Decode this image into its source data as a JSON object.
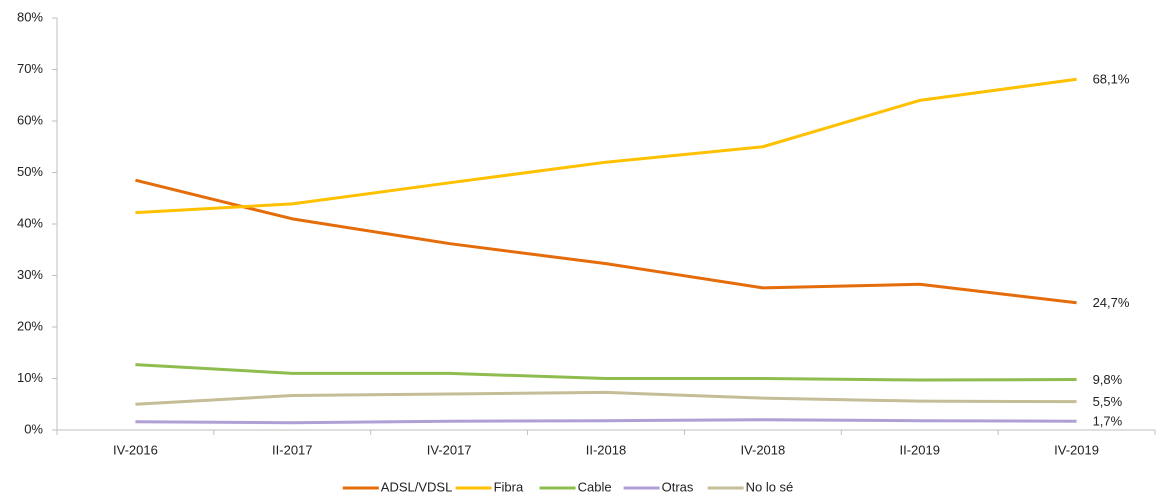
{
  "chart_data": {
    "type": "line",
    "categories": [
      "IV-2016",
      "II-2017",
      "IV-2017",
      "II-2018",
      "IV-2018",
      "II-2019",
      "IV-2019"
    ],
    "series": [
      {
        "name": "ADSL/VDSL",
        "color": "#e46c0a",
        "values": [
          48.5,
          41,
          36.2,
          32.3,
          27.6,
          28.3,
          24.7
        ],
        "value_labels": [
          null,
          null,
          null,
          null,
          null,
          null,
          "24,7%"
        ]
      },
      {
        "name": "Fibra",
        "color": "#ffc000",
        "values": [
          42.2,
          43.9,
          48,
          52,
          55,
          64,
          68.1
        ],
        "value_labels": [
          null,
          null,
          null,
          null,
          null,
          null,
          "68,1%"
        ]
      },
      {
        "name": "Cable",
        "color": "#8fbc4f",
        "values": [
          12.7,
          11,
          11,
          10,
          10,
          9.7,
          9.8
        ],
        "value_labels": [
          null,
          null,
          null,
          null,
          null,
          null,
          "9,8%"
        ]
      },
      {
        "name": "Otras",
        "color": "#b09fd4",
        "values": [
          1.6,
          1.4,
          1.7,
          1.8,
          2,
          1.8,
          1.7
        ],
        "value_labels": [
          null,
          null,
          null,
          null,
          null,
          null,
          "1,7%"
        ]
      },
      {
        "name": "No lo sé",
        "color": "#c4bd97",
        "values": [
          5,
          6.7,
          7,
          7.3,
          6.2,
          5.6,
          5.5
        ],
        "value_labels": [
          null,
          null,
          null,
          null,
          null,
          null,
          "5,5%"
        ]
      }
    ],
    "ylim": [
      0,
      80
    ],
    "yticks": [
      {
        "value": 0,
        "label": "0%"
      },
      {
        "value": 10,
        "label": "10%"
      },
      {
        "value": 20,
        "label": "20%"
      },
      {
        "value": 30,
        "label": "30%"
      },
      {
        "value": 40,
        "label": "40%"
      },
      {
        "value": 50,
        "label": "50%"
      },
      {
        "value": 60,
        "label": "60%"
      },
      {
        "value": 70,
        "label": "70%"
      },
      {
        "value": 80,
        "label": "80%"
      }
    ],
    "legend": "bottom"
  }
}
